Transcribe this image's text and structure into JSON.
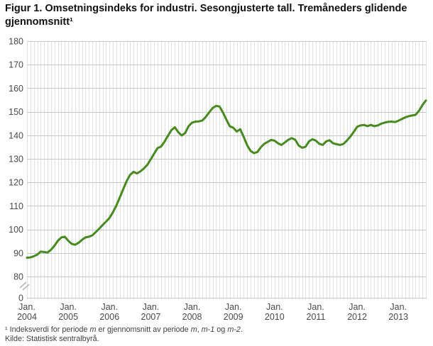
{
  "title": "Figur 1. Omsetningsindeks for industri. Sesongjusterte tall. Tremåneders glidende gjennomsnitt¹",
  "footnote": {
    "parts": [
      "¹ Indeksverdi for periode ",
      "m",
      " er gjennomsnitt av periode ",
      "m",
      ", ",
      "m-1",
      " og ",
      "m-2",
      "."
    ]
  },
  "source": "Kilde: Statistisk sentralbyrå.",
  "chart_data": {
    "type": "line",
    "title": "Omsetningsindeks for industri. Sesongjusterte tall. Tremåneders glidende gjennomsnitt",
    "xlabel": "",
    "ylabel": "",
    "x_monthly_start": "2004-01",
    "x_monthly_end": "2013-09",
    "x_tick_month_label": "Jan.",
    "x_tick_years": [
      "2004",
      "2005",
      "2006",
      "2007",
      "2008",
      "2009",
      "2010",
      "2011",
      "2012",
      "2013"
    ],
    "y_ticks": [
      180,
      170,
      160,
      150,
      140,
      130,
      120,
      110,
      100,
      90,
      80,
      0
    ],
    "y_axis_break_between": [
      0,
      80
    ],
    "ylim_display": [
      80,
      180
    ],
    "grid": {
      "vertical": "monthly",
      "horizontal": "every 10 units"
    },
    "legend_position": "none",
    "line_color": "#458b1f",
    "grid_vertical_color": "#e2e2e2",
    "grid_horizontal_color": "#c9c9c9",
    "axis_label_color": "#4a4a4a",
    "series": [
      {
        "name": "Omsetningsindeks for industri, tremåneders glidende gjennomsnitt",
        "values": [
          88.0,
          88.1,
          88.6,
          89.3,
          90.6,
          90.4,
          90.2,
          91.4,
          93.1,
          95.2,
          96.6,
          96.9,
          95.2,
          93.9,
          93.5,
          94.3,
          95.6,
          96.6,
          96.9,
          97.5,
          98.9,
          100.3,
          101.9,
          103.3,
          104.9,
          107.3,
          110.2,
          113.6,
          117.2,
          120.6,
          123.2,
          124.5,
          123.8,
          124.7,
          125.9,
          127.5,
          129.8,
          132.3,
          134.6,
          135.2,
          137.3,
          139.8,
          142.2,
          143.4,
          141.3,
          139.9,
          141.0,
          143.9,
          145.4,
          145.8,
          145.9,
          146.3,
          147.8,
          149.8,
          151.6,
          152.5,
          152.2,
          149.6,
          146.6,
          143.8,
          143.2,
          141.6,
          142.6,
          139.4,
          135.8,
          133.4,
          132.4,
          132.9,
          134.9,
          136.4,
          137.2,
          138.0,
          137.7,
          136.6,
          135.9,
          137.0,
          138.1,
          138.8,
          138.1,
          135.7,
          134.7,
          135.1,
          137.4,
          138.3,
          137.7,
          136.4,
          135.9,
          137.4,
          137.9,
          136.6,
          136.2,
          135.9,
          136.3,
          137.7,
          139.4,
          141.4,
          143.6,
          144.2,
          144.4,
          143.9,
          144.4,
          143.9,
          144.2,
          144.9,
          145.4,
          145.7,
          145.8,
          145.6,
          146.2,
          146.9,
          147.6,
          148.1,
          148.4,
          148.7,
          150.4,
          152.9,
          154.8
        ]
      }
    ]
  }
}
